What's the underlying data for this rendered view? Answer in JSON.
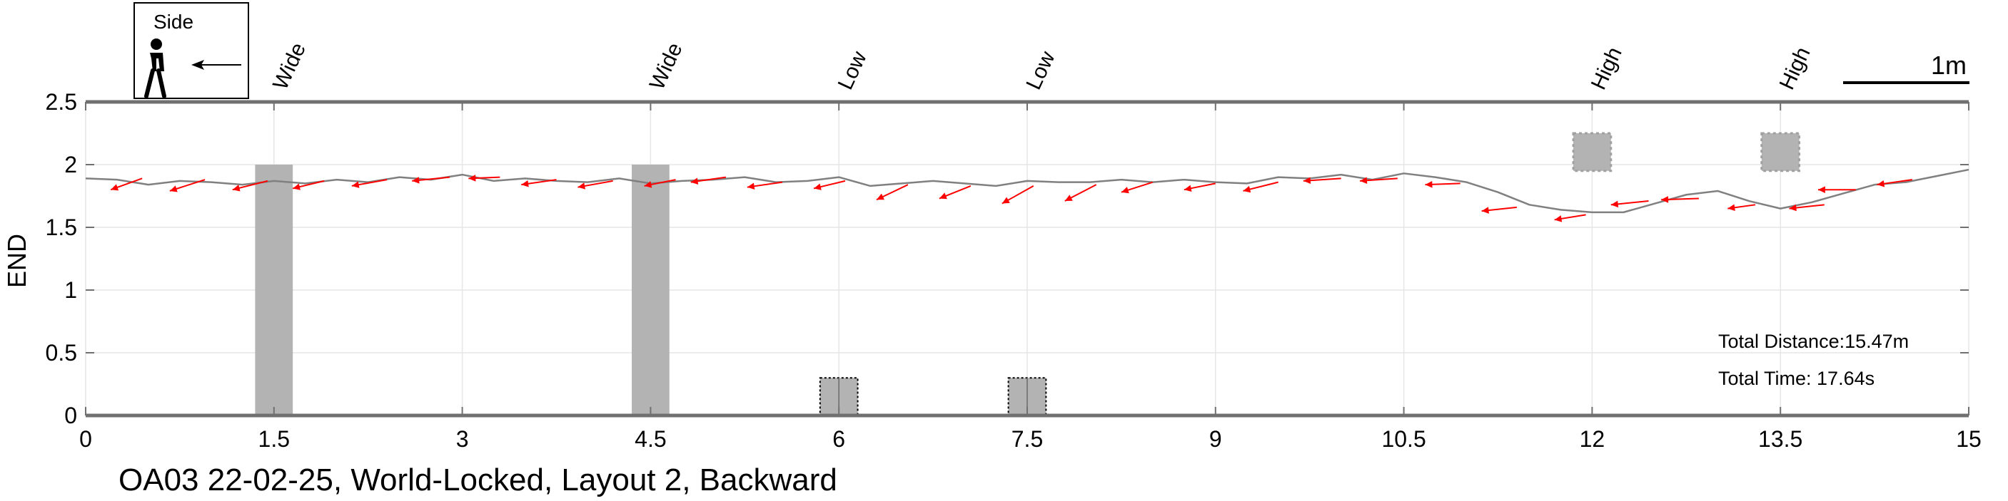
{
  "chart_data": {
    "type": "line",
    "title": "OA03 22-02-25, World-Locked, Layout 2, Backward",
    "xlabel": "",
    "ylabel": "END",
    "xlim": [
      0,
      15
    ],
    "ylim": [
      0,
      2.5
    ],
    "xticks": [
      0,
      1.5,
      3,
      4.5,
      6,
      7.5,
      9,
      10.5,
      12,
      13.5,
      15
    ],
    "xtick_labels": [
      "0",
      "1.5",
      "3",
      "4.5",
      "6",
      "7.5",
      "9",
      "10.5",
      "12",
      "13.5",
      "15"
    ],
    "yticks": [
      0,
      0.5,
      1,
      1.5,
      2,
      2.5
    ],
    "ytick_labels": [
      "0",
      "0.5",
      "1",
      "1.5",
      "2",
      "2.5"
    ],
    "grid": true,
    "colors": {
      "path": "#808080",
      "arrows": "#ff0000",
      "obstacles": "#b3b3b3",
      "axis": "#707070"
    },
    "legend": {
      "label": "Side",
      "icon": "walking-person-icon",
      "arrow": "left-arrow-icon",
      "placement": "top-left"
    },
    "scale_bar": {
      "label": "1m",
      "length": 1
    },
    "path": {
      "x": [
        0,
        0.25,
        0.5,
        0.75,
        1.0,
        1.25,
        1.5,
        1.75,
        2.0,
        2.25,
        2.5,
        2.75,
        3.0,
        3.25,
        3.5,
        3.75,
        4.0,
        4.25,
        4.5,
        4.75,
        5.0,
        5.25,
        5.5,
        5.75,
        6.0,
        6.25,
        6.5,
        6.75,
        7.0,
        7.25,
        7.5,
        7.75,
        8.0,
        8.25,
        8.5,
        8.75,
        9.0,
        9.25,
        9.5,
        9.75,
        10.0,
        10.25,
        10.5,
        10.75,
        11.0,
        11.25,
        11.5,
        11.75,
        12.0,
        12.25,
        12.5,
        12.75,
        13.0,
        13.25,
        13.5,
        13.75,
        14.0,
        14.25,
        14.5,
        14.75,
        15.0
      ],
      "y": [
        1.89,
        1.88,
        1.84,
        1.87,
        1.86,
        1.84,
        1.87,
        1.85,
        1.88,
        1.86,
        1.9,
        1.88,
        1.92,
        1.87,
        1.89,
        1.87,
        1.86,
        1.89,
        1.85,
        1.87,
        1.88,
        1.9,
        1.86,
        1.87,
        1.9,
        1.83,
        1.85,
        1.87,
        1.85,
        1.83,
        1.87,
        1.86,
        1.86,
        1.88,
        1.86,
        1.88,
        1.86,
        1.85,
        1.9,
        1.89,
        1.92,
        1.88,
        1.93,
        1.9,
        1.86,
        1.78,
        1.68,
        1.64,
        1.62,
        1.62,
        1.69,
        1.76,
        1.79,
        1.71,
        1.65,
        1.7,
        1.77,
        1.84,
        1.86,
        1.91,
        1.96
      ]
    },
    "heading_arrows": [
      {
        "x": 0.45,
        "y": 1.89,
        "dx": -0.25,
        "dy": -0.09
      },
      {
        "x": 0.95,
        "y": 1.88,
        "dx": -0.28,
        "dy": -0.09
      },
      {
        "x": 1.45,
        "y": 1.87,
        "dx": -0.28,
        "dy": -0.07
      },
      {
        "x": 1.9,
        "y": 1.87,
        "dx": -0.25,
        "dy": -0.06
      },
      {
        "x": 2.4,
        "y": 1.88,
        "dx": -0.28,
        "dy": -0.05
      },
      {
        "x": 2.9,
        "y": 1.9,
        "dx": -0.3,
        "dy": -0.03
      },
      {
        "x": 3.3,
        "y": 1.9,
        "dx": -0.25,
        "dy": -0.01
      },
      {
        "x": 3.75,
        "y": 1.88,
        "dx": -0.28,
        "dy": -0.04
      },
      {
        "x": 4.2,
        "y": 1.87,
        "dx": -0.28,
        "dy": -0.05
      },
      {
        "x": 4.7,
        "y": 1.88,
        "dx": -0.25,
        "dy": -0.05
      },
      {
        "x": 5.1,
        "y": 1.9,
        "dx": -0.28,
        "dy": -0.04
      },
      {
        "x": 5.55,
        "y": 1.86,
        "dx": -0.28,
        "dy": -0.04
      },
      {
        "x": 6.05,
        "y": 1.87,
        "dx": -0.25,
        "dy": -0.06
      },
      {
        "x": 6.55,
        "y": 1.84,
        "dx": -0.25,
        "dy": -0.12
      },
      {
        "x": 7.05,
        "y": 1.83,
        "dx": -0.25,
        "dy": -0.1
      },
      {
        "x": 7.55,
        "y": 1.83,
        "dx": -0.25,
        "dy": -0.14
      },
      {
        "x": 8.05,
        "y": 1.84,
        "dx": -0.25,
        "dy": -0.13
      },
      {
        "x": 8.5,
        "y": 1.86,
        "dx": -0.25,
        "dy": -0.08
      },
      {
        "x": 9.0,
        "y": 1.85,
        "dx": -0.25,
        "dy": -0.05
      },
      {
        "x": 9.5,
        "y": 1.86,
        "dx": -0.28,
        "dy": -0.07
      },
      {
        "x": 10.0,
        "y": 1.89,
        "dx": -0.3,
        "dy": -0.02
      },
      {
        "x": 10.45,
        "y": 1.89,
        "dx": -0.3,
        "dy": -0.02
      },
      {
        "x": 10.95,
        "y": 1.85,
        "dx": -0.28,
        "dy": -0.01
      },
      {
        "x": 11.4,
        "y": 1.66,
        "dx": -0.28,
        "dy": -0.03
      },
      {
        "x": 11.95,
        "y": 1.6,
        "dx": -0.25,
        "dy": -0.04
      },
      {
        "x": 12.45,
        "y": 1.71,
        "dx": -0.3,
        "dy": -0.03
      },
      {
        "x": 12.85,
        "y": 1.73,
        "dx": -0.3,
        "dy": -0.01
      },
      {
        "x": 13.3,
        "y": 1.68,
        "dx": -0.22,
        "dy": -0.03
      },
      {
        "x": 13.85,
        "y": 1.68,
        "dx": -0.28,
        "dy": -0.03
      },
      {
        "x": 14.1,
        "y": 1.8,
        "dx": -0.3,
        "dy": 0.0
      },
      {
        "x": 14.55,
        "y": 1.88,
        "dx": -0.28,
        "dy": -0.04
      }
    ],
    "obstacles": [
      {
        "label": "Wide",
        "type": "wide",
        "x": [
          1.35,
          1.65
        ],
        "y": [
          0,
          2.0
        ]
      },
      {
        "label": "Wide",
        "type": "wide",
        "x": [
          4.35,
          4.65
        ],
        "y": [
          0,
          2.0
        ]
      },
      {
        "label": "Low",
        "type": "low",
        "x": [
          5.85,
          6.15
        ],
        "y": [
          0,
          0.3
        ]
      },
      {
        "label": "Low",
        "type": "low",
        "x": [
          7.35,
          7.65
        ],
        "y": [
          0,
          0.3
        ]
      },
      {
        "label": "High",
        "type": "high",
        "x": [
          11.85,
          12.15
        ],
        "y": [
          1.95,
          2.25
        ]
      },
      {
        "label": "High",
        "type": "high",
        "x": [
          13.35,
          13.65
        ],
        "y": [
          1.95,
          2.25
        ]
      }
    ],
    "annotations": [
      {
        "text": "Total Distance:15.47m"
      },
      {
        "text": "Total Time: 17.64s"
      }
    ]
  }
}
